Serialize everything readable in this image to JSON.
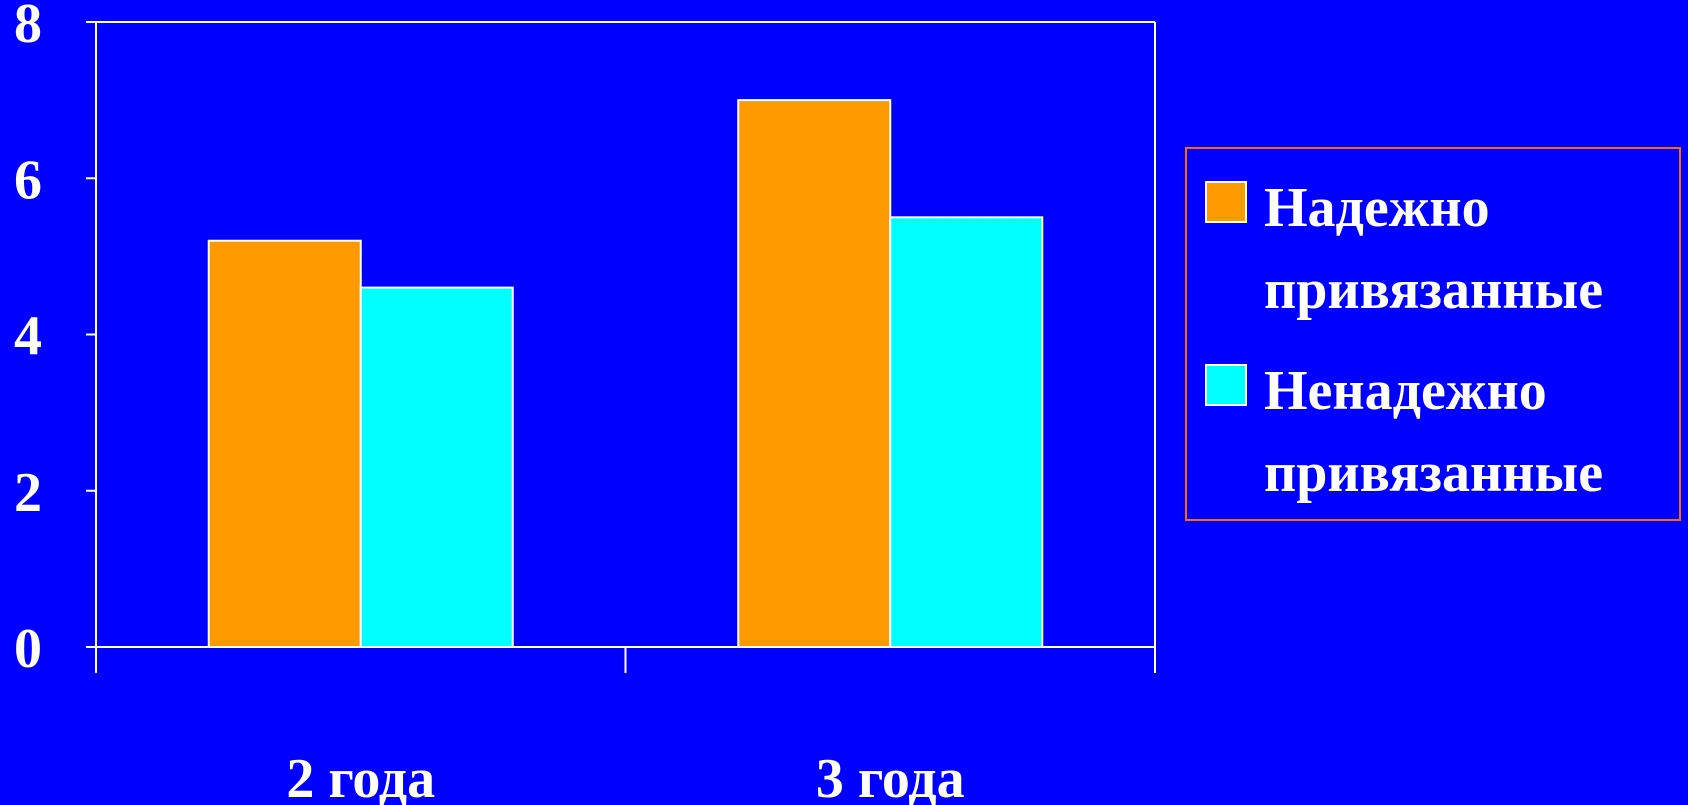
{
  "chart_data": {
    "type": "bar",
    "categories": [
      "2 года",
      "3 года"
    ],
    "series": [
      {
        "name": "Надежно привязанные",
        "name_lines": [
          "Надежно",
          "привязанные"
        ],
        "values": [
          5.2,
          7.0
        ],
        "color": "#FF9900"
      },
      {
        "name": "Ненадежно привязанные",
        "name_lines": [
          "Ненадежно",
          "привязанные"
        ],
        "values": [
          4.6,
          5.5
        ],
        "color": "#00FFFF"
      }
    ],
    "y_ticks": [
      "0",
      "2",
      "4",
      "6",
      "8"
    ],
    "ylim": [
      0,
      8
    ],
    "grid": false,
    "legend_position": "right",
    "background_color": "#0000FF",
    "plot_border_color": "#FFFFFF",
    "legend_border_color": "#FF6600",
    "text_color": "#FFFFFF"
  }
}
